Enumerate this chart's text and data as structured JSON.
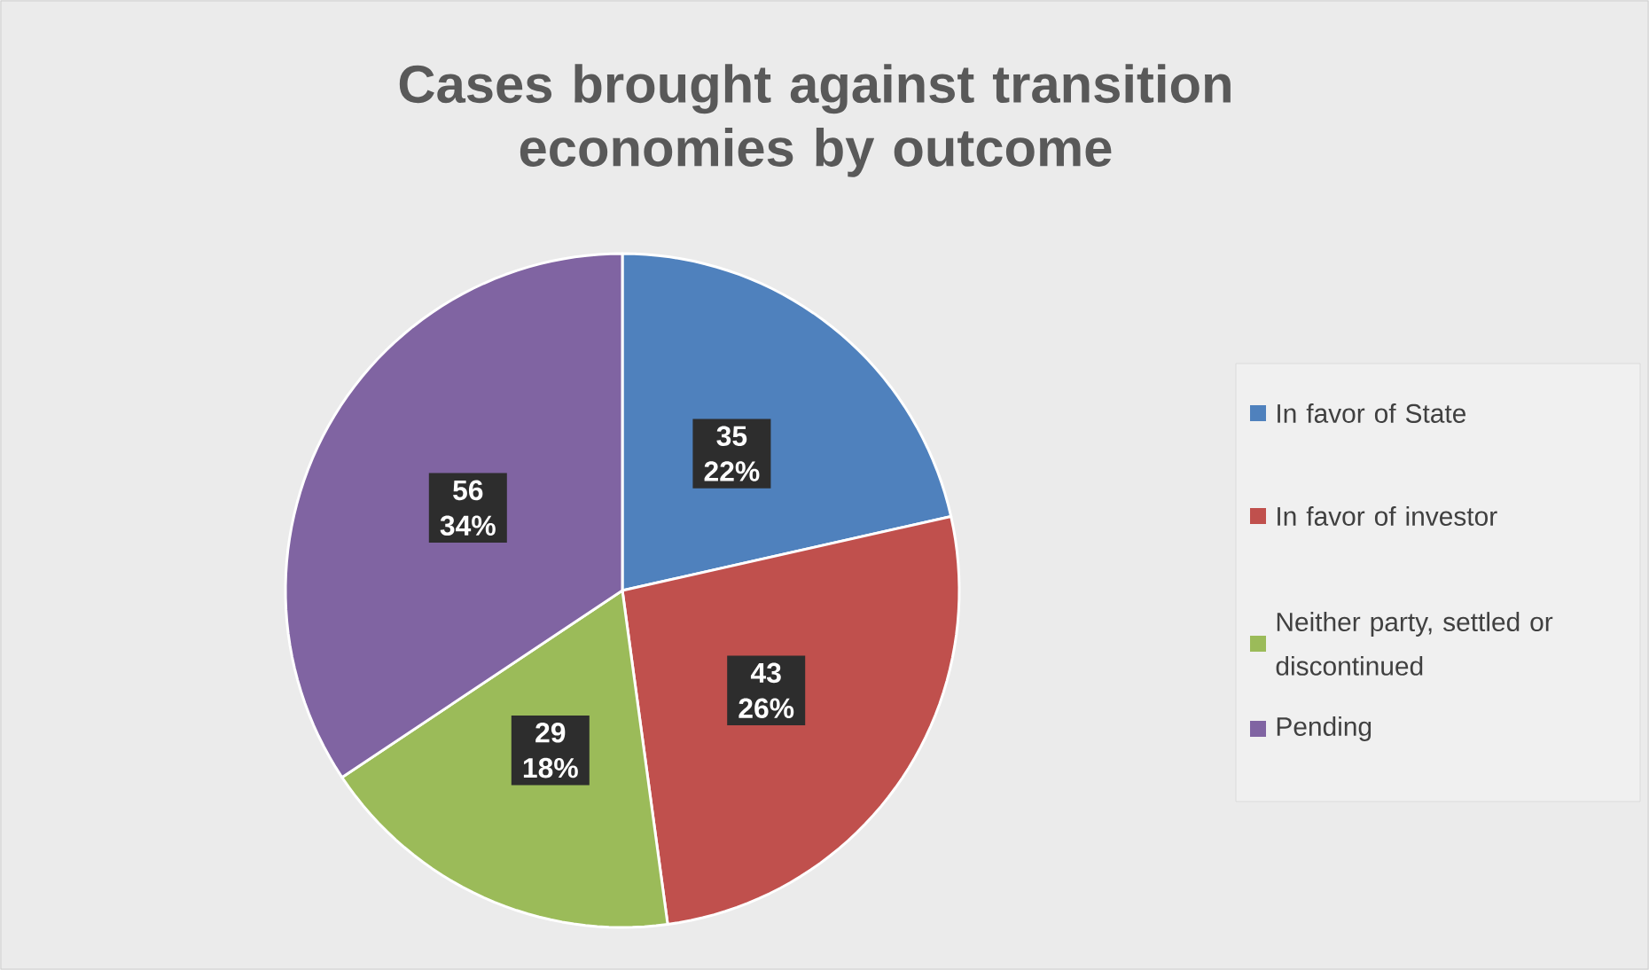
{
  "chart_data": {
    "type": "pie",
    "title": "Cases brought against transition economies by outcome",
    "categories": [
      "In favor of State",
      "In favor of investor",
      "Neither party, settled or discontinued",
      "Pending"
    ],
    "values": [
      35,
      43,
      29,
      56
    ],
    "colors": [
      "#4f81bd",
      "#c0504d",
      "#9bbb59",
      "#8064a2"
    ],
    "value_labels": [
      "35 22%",
      "43 26%",
      "29 18%",
      "56 34%"
    ],
    "legend": "right"
  }
}
